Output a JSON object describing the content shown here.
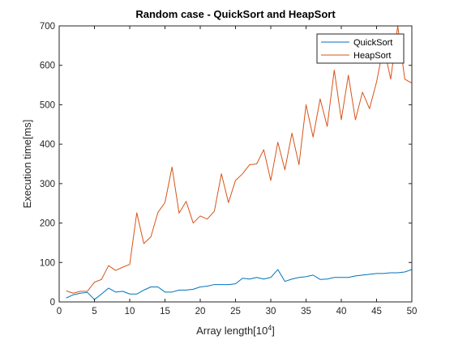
{
  "chart_data": {
    "type": "line",
    "title": "Random case - QuickSort and HeapSort",
    "xlabel": "Array length[10",
    "xlabel_exponent": "4",
    "xlabel_suffix": "]",
    "ylabel": "Execution time[ms]",
    "xlim": [
      0,
      50
    ],
    "ylim": [
      0,
      700
    ],
    "xticks": [
      0,
      5,
      10,
      15,
      20,
      25,
      30,
      35,
      40,
      45,
      50
    ],
    "yticks": [
      0,
      100,
      200,
      300,
      400,
      500,
      600,
      700
    ],
    "grid": false,
    "legend_position": "top-right",
    "x": [
      1,
      2,
      3,
      4,
      5,
      6,
      7,
      8,
      9,
      10,
      11,
      12,
      13,
      14,
      15,
      16,
      17,
      18,
      19,
      20,
      21,
      22,
      23,
      24,
      25,
      26,
      27,
      28,
      29,
      30,
      31,
      32,
      33,
      34,
      35,
      36,
      37,
      38,
      39,
      40,
      41,
      42,
      43,
      44,
      45,
      46,
      47,
      48,
      49,
      50
    ],
    "series": [
      {
        "name": "QuickSort",
        "color": "#0072bd",
        "values": [
          10,
          18,
          22,
          24,
          6,
          20,
          35,
          25,
          27,
          20,
          20,
          30,
          38,
          38,
          25,
          25,
          30,
          30,
          32,
          38,
          40,
          44,
          44,
          44,
          46,
          60,
          58,
          62,
          58,
          62,
          82,
          52,
          58,
          62,
          64,
          68,
          57,
          58,
          62,
          62,
          62,
          66,
          68,
          70,
          72,
          72,
          74,
          74,
          76,
          82
        ]
      },
      {
        "name": "HeapSort",
        "color": "#d95319",
        "values": [
          28,
          22,
          27,
          27,
          50,
          57,
          92,
          80,
          88,
          95,
          226,
          148,
          165,
          227,
          252,
          342,
          225,
          255,
          200,
          218,
          210,
          230,
          325,
          252,
          308,
          325,
          348,
          350,
          386,
          308,
          405,
          335,
          428,
          348,
          500,
          418,
          515,
          445,
          588,
          462,
          575,
          462,
          532,
          490,
          558,
          650,
          565,
          700,
          565,
          555
        ]
      }
    ]
  }
}
